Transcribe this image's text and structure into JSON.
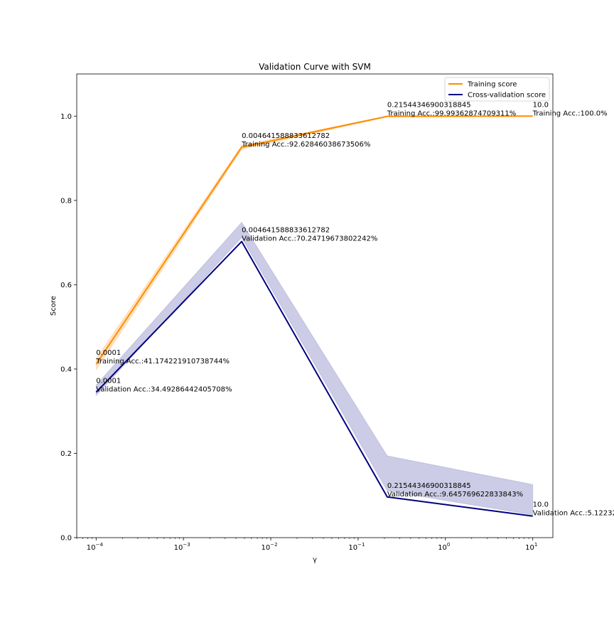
{
  "chart_data": {
    "type": "line",
    "title": "Validation Curve with SVM",
    "xlabel": "γ",
    "ylabel": "Score",
    "xscale": "log",
    "xlim": [
      6e-05,
      17
    ],
    "ylim": [
      0.0,
      1.1
    ],
    "grid": false,
    "legend_position": "top-right",
    "x": [
      0.0001,
      0.004641588833612782,
      0.21544346900318845,
      10.0
    ],
    "x_ticks": [
      {
        "value": 0.0001,
        "base": "10",
        "exp": "−4"
      },
      {
        "value": 0.001,
        "base": "10",
        "exp": "−3"
      },
      {
        "value": 0.01,
        "base": "10",
        "exp": "−2"
      },
      {
        "value": 0.1,
        "base": "10",
        "exp": "−1"
      },
      {
        "value": 1,
        "base": "10",
        "exp": "0"
      },
      {
        "value": 10,
        "base": "10",
        "exp": "1"
      }
    ],
    "y_ticks": [
      {
        "value": 0.0,
        "label": "0.0"
      },
      {
        "value": 0.2,
        "label": "0.2"
      },
      {
        "value": 0.4,
        "label": "0.4"
      },
      {
        "value": 0.6,
        "label": "0.6"
      },
      {
        "value": 0.8,
        "label": "0.8"
      },
      {
        "value": 1.0,
        "label": "1.0"
      }
    ],
    "series": [
      {
        "name": "Training score",
        "color": "#ff8c00",
        "values": [
          0.4117,
          0.9263,
          0.9994,
          1.0
        ],
        "band_lower": [
          0.398,
          0.921,
          0.998,
          1.0
        ],
        "band_upper": [
          0.425,
          0.931,
          1.0,
          1.0
        ],
        "band_color": "#ff8c00",
        "annotation_prefix": "Training Acc.:",
        "annotations": [
          "41.174221910738744%",
          "92.62846038673506%",
          "99.99362874709311%",
          "100.0%"
        ]
      },
      {
        "name": "Cross-validation score",
        "color": "#000080",
        "values": [
          0.3449,
          0.7025,
          0.0965,
          0.0512
        ],
        "band_lower": [
          0.337,
          0.712,
          0.111,
          0.054
        ],
        "band_upper": [
          0.362,
          0.748,
          0.194,
          0.126
        ],
        "band_color": "#000080",
        "annotation_prefix": "Validation Acc.:",
        "annotations": [
          "34.49286442405708%",
          "70.24719673802242%",
          "9.645769622833843%",
          "5.12232"
        ]
      }
    ],
    "point_labels": [
      "0.0001",
      "0.004641588833612782",
      "0.21544346900318845",
      "10.0"
    ]
  }
}
